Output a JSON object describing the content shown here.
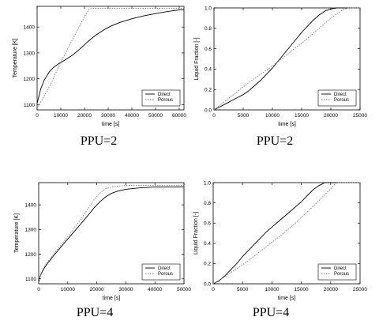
{
  "chart_data": [
    {
      "type": "line",
      "xlabel": "time [s]",
      "ylabel": "Temperature [K]",
      "xlim": [
        0,
        62000
      ],
      "ylim": [
        1080,
        1480
      ],
      "xticks": [
        0,
        10000,
        20000,
        30000,
        40000,
        50000,
        60000
      ],
      "yticks": [
        1100,
        1200,
        1300,
        1400
      ],
      "legend": "bottom-right",
      "caption": "PPU=2",
      "series": [
        {
          "name": "Direct",
          "style": "solid",
          "color": "#000000",
          "x": [
            0,
            1500,
            3000,
            5000,
            7000,
            9000,
            11000,
            13000,
            15000,
            17000,
            19000,
            21000,
            23000,
            25000,
            28000,
            31000,
            35000,
            40000,
            45000,
            50000,
            55000,
            60000,
            62000
          ],
          "y": [
            1105,
            1160,
            1195,
            1225,
            1245,
            1258,
            1268,
            1280,
            1292,
            1307,
            1323,
            1340,
            1356,
            1370,
            1388,
            1403,
            1418,
            1432,
            1443,
            1452,
            1460,
            1466,
            1467
          ]
        },
        {
          "name": "Porous",
          "style": "dotted",
          "color": "#777777",
          "x": [
            0,
            2000,
            4000,
            6000,
            8000,
            10000,
            12000,
            14000,
            16000,
            18000,
            20000,
            22000,
            24000,
            62000
          ],
          "y": [
            1085,
            1118,
            1150,
            1185,
            1225,
            1265,
            1300,
            1335,
            1370,
            1405,
            1440,
            1470,
            1472,
            1472
          ]
        }
      ]
    },
    {
      "type": "line",
      "xlabel": "time [s]",
      "ylabel": "Liquid Fraction [-]",
      "xlim": [
        0,
        25000
      ],
      "ylim": [
        0,
        1
      ],
      "xticks": [
        0,
        5000,
        10000,
        15000,
        20000,
        25000
      ],
      "yticks": [
        0,
        0.2,
        0.4,
        0.6,
        0.8,
        1.0
      ],
      "legend": "bottom-right",
      "caption": "PPU=2",
      "series": [
        {
          "name": "Direct",
          "style": "solid",
          "color": "#000000",
          "x": [
            0,
            1000,
            2000,
            3000,
            4000,
            5000,
            6000,
            7000,
            8000,
            9000,
            10000,
            11000,
            12000,
            13000,
            14000,
            15000,
            16000,
            17000,
            18000,
            19000,
            20000,
            21000,
            22000,
            23000,
            25000
          ],
          "y": [
            0.0,
            0.03,
            0.06,
            0.09,
            0.12,
            0.15,
            0.19,
            0.24,
            0.29,
            0.35,
            0.41,
            0.48,
            0.55,
            0.62,
            0.69,
            0.76,
            0.82,
            0.88,
            0.93,
            0.97,
            0.99,
            1.0,
            1.0,
            1.0,
            1.0
          ]
        },
        {
          "name": "Porous",
          "style": "dotted",
          "color": "#777777",
          "x": [
            0,
            2000,
            4000,
            6000,
            8000,
            10000,
            12000,
            14000,
            16000,
            18000,
            20000,
            22000,
            23000,
            25000
          ],
          "y": [
            0.0,
            0.09,
            0.18,
            0.27,
            0.35,
            0.43,
            0.52,
            0.61,
            0.7,
            0.8,
            0.9,
            0.98,
            1.0,
            1.0
          ]
        }
      ]
    },
    {
      "type": "line",
      "xlabel": "time [s]",
      "ylabel": "Temperature [K]",
      "xlim": [
        0,
        50000
      ],
      "ylim": [
        1080,
        1490
      ],
      "xticks": [
        0,
        10000,
        20000,
        30000,
        40000,
        50000
      ],
      "yticks": [
        1100,
        1200,
        1300,
        1400
      ],
      "legend": "bottom-right",
      "caption": "PPU=4",
      "series": [
        {
          "name": "Direct",
          "style": "solid",
          "color": "#000000",
          "x": [
            0,
            500,
            1000,
            2000,
            3000,
            5000,
            7000,
            9000,
            11000,
            13000,
            15000,
            17000,
            19000,
            21000,
            23000,
            25000,
            27000,
            30000,
            35000,
            40000,
            50000
          ],
          "y": [
            1085,
            1110,
            1125,
            1145,
            1162,
            1192,
            1220,
            1248,
            1275,
            1302,
            1330,
            1358,
            1387,
            1412,
            1432,
            1446,
            1455,
            1463,
            1469,
            1472,
            1473
          ]
        },
        {
          "name": "Porous",
          "style": "dotted",
          "color": "#777777",
          "x": [
            0,
            500,
            1000,
            2000,
            3000,
            5000,
            7000,
            9000,
            11000,
            13000,
            15000,
            17000,
            19000,
            21000,
            23000,
            26000,
            30000,
            40000,
            50000
          ],
          "y": [
            1085,
            1112,
            1128,
            1150,
            1168,
            1198,
            1228,
            1257,
            1287,
            1318,
            1350,
            1385,
            1420,
            1447,
            1465,
            1475,
            1478,
            1478,
            1478
          ]
        }
      ]
    },
    {
      "type": "line",
      "xlabel": "time [s]",
      "ylabel": "Liquid Fraction [-]",
      "xlim": [
        0,
        25000
      ],
      "ylim": [
        0,
        1
      ],
      "xticks": [
        0,
        5000,
        10000,
        15000,
        20000,
        25000
      ],
      "yticks": [
        0,
        0.2,
        0.4,
        0.6,
        0.8,
        1.0
      ],
      "legend": "bottom-right",
      "caption": "PPU=4",
      "series": [
        {
          "name": "Direct",
          "style": "solid",
          "color": "#000000",
          "x": [
            0,
            1000,
            2000,
            3000,
            4000,
            5000,
            6000,
            7000,
            8000,
            9000,
            10000,
            11000,
            12000,
            13000,
            14000,
            15000,
            16000,
            17000,
            18000,
            19000,
            20000,
            25000
          ],
          "y": [
            0.0,
            0.03,
            0.08,
            0.14,
            0.2,
            0.27,
            0.33,
            0.39,
            0.45,
            0.51,
            0.56,
            0.61,
            0.66,
            0.71,
            0.76,
            0.81,
            0.87,
            0.93,
            0.97,
            1.0,
            1.0,
            1.0
          ]
        },
        {
          "name": "Porous",
          "style": "dotted",
          "color": "#777777",
          "x": [
            0,
            2000,
            4000,
            6000,
            8000,
            10000,
            12000,
            14000,
            16000,
            18000,
            20000,
            21000,
            25000
          ],
          "y": [
            0.0,
            0.07,
            0.15,
            0.23,
            0.32,
            0.41,
            0.5,
            0.6,
            0.71,
            0.82,
            0.94,
            1.0,
            1.0
          ]
        }
      ]
    }
  ]
}
